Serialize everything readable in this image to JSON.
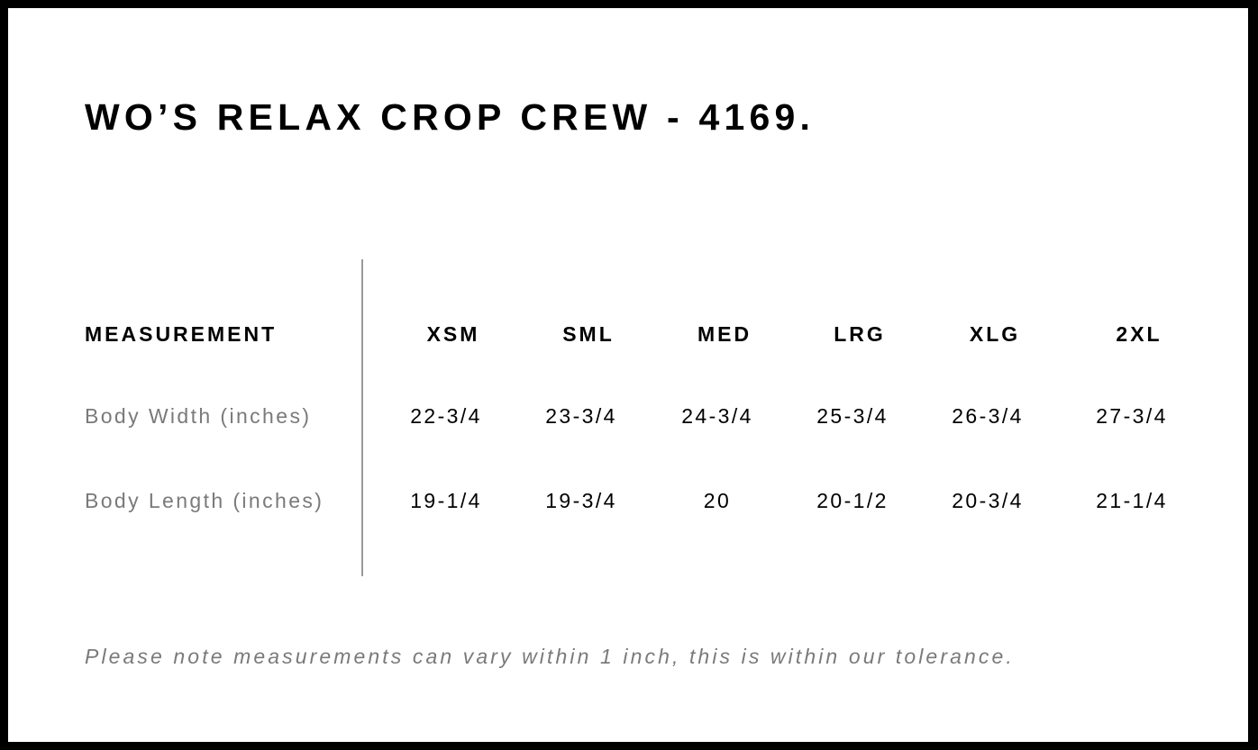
{
  "title": "WO’S RELAX CROP CREW - 4169.",
  "table": {
    "header_label": "MEASUREMENT",
    "sizes": [
      "XSM",
      "SML",
      "MED",
      "LRG",
      "XLG",
      "2XL"
    ],
    "rows": [
      {
        "label": "Body Width (inches)",
        "values": [
          "22-3/4",
          "23-3/4",
          "24-3/4",
          "25-3/4",
          "26-3/4",
          "27-3/4"
        ]
      },
      {
        "label": "Body Length (inches)",
        "values": [
          "19-1/4",
          "19-3/4",
          "20",
          "20-1/2",
          "20-3/4",
          "21-1/4"
        ]
      }
    ]
  },
  "note": "Please note measurements can vary within 1 inch, this is within our tolerance."
}
